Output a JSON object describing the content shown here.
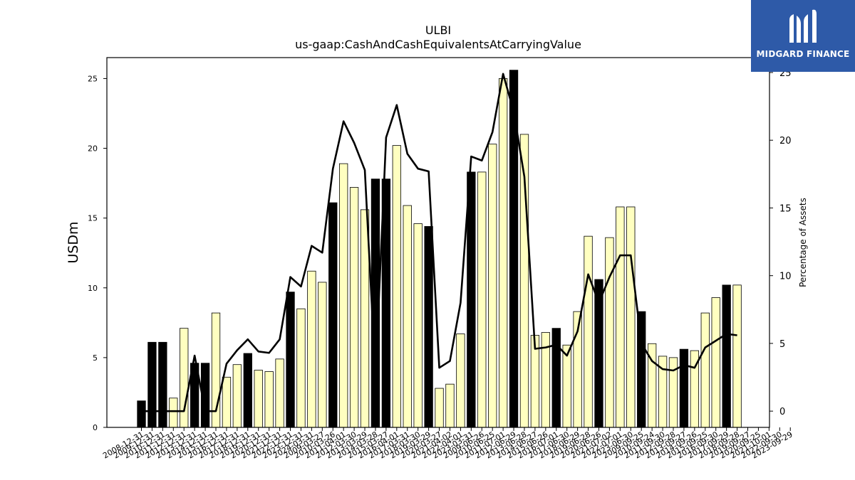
{
  "chart_data": {
    "type": "bar",
    "title": "ULBI",
    "subtitle": "us-gaap:CashAndCashEquivalentsAtCarryingValue",
    "ylabel": "USDm",
    "y2label": "Percentage of Assets",
    "ylim": [
      0,
      26.5
    ],
    "y2lim": [
      -1.2,
      26.1
    ],
    "yticks": [
      0,
      5,
      10,
      15,
      20,
      25
    ],
    "y2ticks": [
      0,
      5,
      10,
      15,
      20,
      25
    ],
    "categories": [
      "2008-12-31",
      "2009-03-27",
      "2009-06-26",
      "2009-09-25",
      "2009-12-31",
      "2010-03-26",
      "2010-06-25",
      "2010-09-24",
      "2010-12-31",
      "2011-04-01",
      "2011-07-01",
      "2011-09-30",
      "2011-12-31",
      "2012-03-30",
      "2012-06-29",
      "2012-09-28",
      "2012-12-31",
      "2013-03-29",
      "2013-06-28",
      "2013-09-27",
      "2013-12-31",
      "2014-03-28",
      "2014-06-27",
      "2014-09-26",
      "2014-12-31",
      "2015-03-27",
      "2015-06-26",
      "2015-09-25",
      "2015-12-31",
      "2016-04-01",
      "2016-07-01",
      "2016-09-30",
      "2016-12-31",
      "2017-03-31",
      "2017-06-30",
      "2017-09-29",
      "2017-12-31",
      "2018-03-30",
      "2018-06-29",
      "2018-09-28",
      "2018-12-31",
      "2019-03-29",
      "2019-06-28",
      "2019-09-27",
      "2019-12-31",
      "2020-03-27",
      "2020-06-26",
      "2020-09-25",
      "2020-12-31",
      "2021-04-02",
      "2021-07-02",
      "2021-10-01",
      "2021-12-31",
      "2022-04-01",
      "2022-07-01",
      "2022-09-30",
      "2022-12-31",
      "2023-03-31",
      "2023-06-30",
      "2023-09-29",
      "2023-12-31",
      "2024-03-31"
    ],
    "xtick_labels": [
      "2008-12-31",
      "2009-12-31",
      "2010-12-31",
      "2011-12-31",
      "2012-12-31",
      "2013-12-31",
      "2014-12-31",
      "2015-12-31",
      "2016-12-31",
      "2017-12-31",
      "2018-12-31",
      "2019-12-31",
      "2020-12-31",
      "2021-12-31",
      "2022-12-31",
      "2023-12-31",
      "2024-03-31",
      "2009-03-27",
      "2010-03-26",
      "2011-04-01",
      "2012-03-30",
      "2013-03-29",
      "2014-03-28",
      "2015-03-27",
      "2016-04-01",
      "2017-03-31",
      "2018-03-30",
      "2019-03-29",
      "2020-03-27",
      "2021-04-02",
      "2022-04-01",
      "2023-03-31",
      "2009-06-26",
      "2010-06-25",
      "2011-07-01",
      "2012-06-29",
      "2013-06-28",
      "2014-06-27",
      "2015-06-26",
      "2016-07-01",
      "2017-06-30",
      "2018-06-29",
      "2019-06-28",
      "2020-06-26",
      "2021-07-02",
      "2022-07-01",
      "2023-06-30",
      "2009-09-25",
      "2010-09-24",
      "2011-09-30",
      "2012-09-28",
      "2013-09-27",
      "2014-09-26",
      "2015-09-25",
      "2016-09-30",
      "2017-09-29",
      "2018-09-28",
      "2019-09-27",
      "2020-09-25",
      "2021-10-01",
      "2022-09-30",
      "2023-09-29"
    ],
    "values": [
      1.9,
      6.1,
      6.1,
      2.1,
      7.1,
      4.6,
      4.6,
      8.2,
      3.6,
      4.5,
      5.3,
      4.1,
      4.0,
      4.9,
      9.7,
      8.5,
      11.2,
      10.4,
      16.1,
      18.9,
      17.2,
      15.6,
      17.8,
      17.8,
      20.2,
      15.9,
      14.6,
      14.4,
      2.8,
      3.1,
      6.7,
      18.3,
      18.3,
      20.3,
      25.0,
      25.6,
      21.0,
      6.6,
      6.8,
      7.1,
      5.9,
      8.3,
      13.7,
      10.6,
      13.6,
      15.8,
      15.8,
      8.3,
      6.0,
      5.1,
      5.0,
      5.6,
      5.5,
      8.2,
      9.3,
      10.2,
      10.2,
      null,
      null,
      null,
      null,
      null
    ],
    "bar_fill": [
      "black",
      "black",
      "black",
      "light",
      "light",
      "black",
      "black",
      "light",
      "light",
      "light",
      "black",
      "light",
      "light",
      "light",
      "black",
      "light",
      "light",
      "light",
      "black",
      "light",
      "light",
      "light",
      "black",
      "black",
      "light",
      "light",
      "light",
      "black",
      "light",
      "light",
      "light",
      "black",
      "light",
      "light",
      "light",
      "black",
      "light",
      "light",
      "light",
      "black",
      "light",
      "light",
      "light",
      "black",
      "light",
      "light",
      "light",
      "black",
      "light",
      "light",
      "light",
      "black",
      "light",
      "light",
      "light",
      "black",
      "light",
      "light",
      "light",
      "black",
      "light",
      "light"
    ],
    "pct_of_assets": [
      0.0,
      0.0,
      0.0,
      0.0,
      0.0,
      4.1,
      0.0,
      0.0,
      3.5,
      4.5,
      5.3,
      4.4,
      4.3,
      5.3,
      9.9,
      9.2,
      12.2,
      11.7,
      17.9,
      21.4,
      19.8,
      17.8,
      2.6,
      20.2,
      22.6,
      19.0,
      17.9,
      17.7,
      3.2,
      3.7,
      8.0,
      18.8,
      18.5,
      20.6,
      24.9,
      22.1,
      17.3,
      4.6,
      4.7,
      4.9,
      4.1,
      5.9,
      10.1,
      8.0,
      9.9,
      11.5,
      11.5,
      5.0,
      3.7,
      3.1,
      3.0,
      3.4,
      3.2,
      4.7,
      5.2,
      5.7,
      5.6,
      null,
      null,
      null,
      null,
      null
    ],
    "colors": {
      "bar_black": "#000000",
      "bar_light": "#ffffc0",
      "line": "#000000"
    },
    "grid": false,
    "legend": "none"
  },
  "branding": {
    "logo_text": "MIDGARD FINANCE",
    "logo_bg": "#2e5aa8",
    "logo_icon": "midgard-m-icon"
  }
}
